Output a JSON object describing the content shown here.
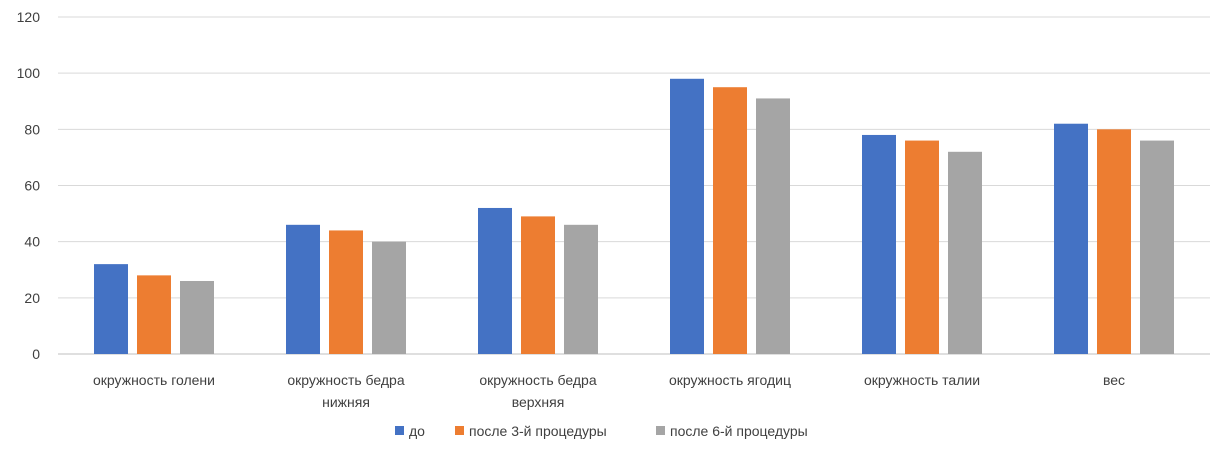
{
  "chart_data": {
    "type": "bar",
    "categories": [
      [
        "окружность  голени"
      ],
      [
        "окружность бедра",
        "нижняя"
      ],
      [
        "окружность  бедра",
        "верхняя"
      ],
      [
        "окружность  ягодиц"
      ],
      [
        "окружность талии"
      ],
      [
        "вес"
      ]
    ],
    "series": [
      {
        "name": "до",
        "color": "#4472c4",
        "values": [
          32,
          46,
          52,
          98,
          78,
          82
        ]
      },
      {
        "name": "после  3-й процедуры",
        "color": "#ed7d31",
        "values": [
          28,
          44,
          49,
          95,
          76,
          80
        ]
      },
      {
        "name": "после  6-й  процедуры",
        "color": "#a5a5a5",
        "values": [
          26,
          40,
          46,
          91,
          72,
          76
        ]
      }
    ],
    "ylim": [
      0,
      120
    ],
    "yticks": [
      "0",
      "20",
      "40",
      "60",
      "80",
      "100",
      "120"
    ],
    "grid": true,
    "legend_position": "bottom"
  }
}
